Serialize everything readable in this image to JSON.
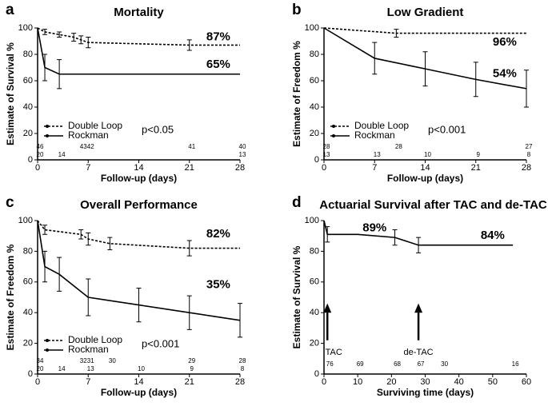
{
  "chart_data": [
    {
      "type": "line",
      "panel": "a",
      "title": "Mortality",
      "ylabel": "Estimate of Survival %",
      "xlabel": "Follow-up (days)",
      "xlim": [
        0,
        28
      ],
      "xticks": [
        0,
        7,
        14,
        21,
        28
      ],
      "ylim": [
        0,
        100
      ],
      "yticks": [
        0,
        20,
        40,
        60,
        80,
        100
      ],
      "pvalue": "p<0.05",
      "series": [
        {
          "name": "Double Loop",
          "color": "#000000",
          "dashed": true,
          "x": [
            0,
            1,
            3,
            5,
            6,
            7,
            21,
            28
          ],
          "values": [
            100,
            97,
            95,
            93,
            91,
            89,
            87,
            87
          ],
          "errors": [
            null,
            2,
            2,
            3,
            3,
            4,
            4,
            null
          ],
          "at_risk_x": [
            0,
            6,
            7,
            21,
            28
          ],
          "at_risk": [
            46,
            43,
            42,
            41,
            40
          ]
        },
        {
          "name": "Rockman",
          "color": "#000000",
          "dashed": false,
          "x": [
            0,
            1,
            3,
            28
          ],
          "values": [
            100,
            70,
            65,
            65
          ],
          "errors": [
            null,
            10,
            11,
            null
          ],
          "at_risk_x": [
            0,
            3,
            28
          ],
          "at_risk": [
            20,
            14,
            13
          ]
        }
      ],
      "annotations": [
        {
          "text": "87%",
          "x": 25,
          "y": 93
        },
        {
          "text": "65%",
          "x": 25,
          "y": 72
        }
      ]
    },
    {
      "type": "line",
      "panel": "b",
      "title": "Low Gradient",
      "ylabel": "Estimate of Freedom %",
      "xlabel": "Follow-up (days)",
      "xlim": [
        0,
        28
      ],
      "xticks": [
        0,
        7,
        14,
        21,
        28
      ],
      "ylim": [
        0,
        100
      ],
      "yticks": [
        0,
        20,
        40,
        60,
        80,
        100
      ],
      "pvalue": "p<0.001",
      "series": [
        {
          "name": "Double Loop",
          "color": "#000000",
          "dashed": true,
          "x": [
            0,
            10,
            28
          ],
          "values": [
            100,
            96,
            96
          ],
          "errors": [
            null,
            3,
            null
          ],
          "at_risk_x": [
            0,
            10,
            28
          ],
          "at_risk": [
            28,
            28,
            27
          ]
        },
        {
          "name": "Rockman",
          "color": "#000000",
          "dashed": false,
          "x": [
            0,
            7,
            14,
            21,
            28
          ],
          "values": [
            100,
            77,
            69,
            61,
            54
          ],
          "errors": [
            null,
            12,
            13,
            13,
            14
          ],
          "at_risk_x": [
            0,
            7,
            14,
            21,
            28
          ],
          "at_risk": [
            13,
            13,
            10,
            9,
            8
          ]
        }
      ],
      "annotations": [
        {
          "text": "96%",
          "x": 25,
          "y": 89
        },
        {
          "text": "54%",
          "x": 25,
          "y": 65
        }
      ]
    },
    {
      "type": "line",
      "panel": "c",
      "title": "Overall Performance",
      "ylabel": "Estimate of Freedom %",
      "xlabel": "Follow-up (days)",
      "xlim": [
        0,
        28
      ],
      "xticks": [
        0,
        7,
        14,
        21,
        28
      ],
      "ylim": [
        0,
        100
      ],
      "yticks": [
        0,
        20,
        40,
        60,
        80,
        100
      ],
      "pvalue": "p<0.001",
      "series": [
        {
          "name": "Double Loop",
          "color": "#000000",
          "dashed": true,
          "x": [
            0,
            1,
            6,
            7,
            10,
            21,
            28
          ],
          "values": [
            100,
            94,
            91,
            88,
            85,
            82,
            82
          ],
          "errors": [
            null,
            3,
            3,
            4,
            4,
            5,
            null
          ],
          "at_risk_x": [
            0,
            6,
            7,
            10,
            21,
            28
          ],
          "at_risk": [
            34,
            32,
            31,
            30,
            29,
            28
          ]
        },
        {
          "name": "Rockman",
          "color": "#000000",
          "dashed": false,
          "x": [
            0,
            1,
            3,
            7,
            14,
            21,
            28
          ],
          "values": [
            100,
            70,
            65,
            50,
            45,
            40,
            35
          ],
          "errors": [
            null,
            10,
            11,
            12,
            11,
            11,
            11
          ],
          "at_risk_x": [
            0,
            3,
            7,
            14,
            21,
            28
          ],
          "at_risk": [
            20,
            14,
            13,
            10,
            9,
            8
          ]
        }
      ],
      "annotations": [
        {
          "text": "82%",
          "x": 25,
          "y": 91
        },
        {
          "text": "35%",
          "x": 25,
          "y": 58
        }
      ]
    },
    {
      "type": "line",
      "panel": "d",
      "title": "Actuarial Survival after TAC and de-TAC",
      "ylabel": "Estimate of Survival %",
      "xlabel": "Surviving time (days)",
      "xlim": [
        0,
        60
      ],
      "xticks": [
        0,
        10,
        20,
        30,
        40,
        50,
        60
      ],
      "ylim": [
        0,
        100
      ],
      "yticks": [
        0,
        20,
        40,
        60,
        80,
        100
      ],
      "series": [
        {
          "color": "#000000",
          "dashed": false,
          "x": [
            0,
            1,
            10,
            21,
            28,
            35,
            56
          ],
          "values": [
            100,
            91,
            91,
            89,
            84,
            84,
            84
          ],
          "errors": [
            null,
            5,
            null,
            5,
            5,
            null,
            null
          ],
          "at_risk_x": [
            1,
            10,
            21,
            28,
            35,
            56
          ],
          "at_risk": [
            76,
            69,
            68,
            67,
            30,
            16
          ]
        }
      ],
      "annotations": [
        {
          "text": "89%",
          "x": 15,
          "y": 95
        },
        {
          "text": "84%",
          "x": 50,
          "y": 90
        }
      ],
      "arrows": [
        {
          "text": "TAC",
          "x": 1
        },
        {
          "text": "de-TAC",
          "x": 28
        }
      ]
    }
  ]
}
